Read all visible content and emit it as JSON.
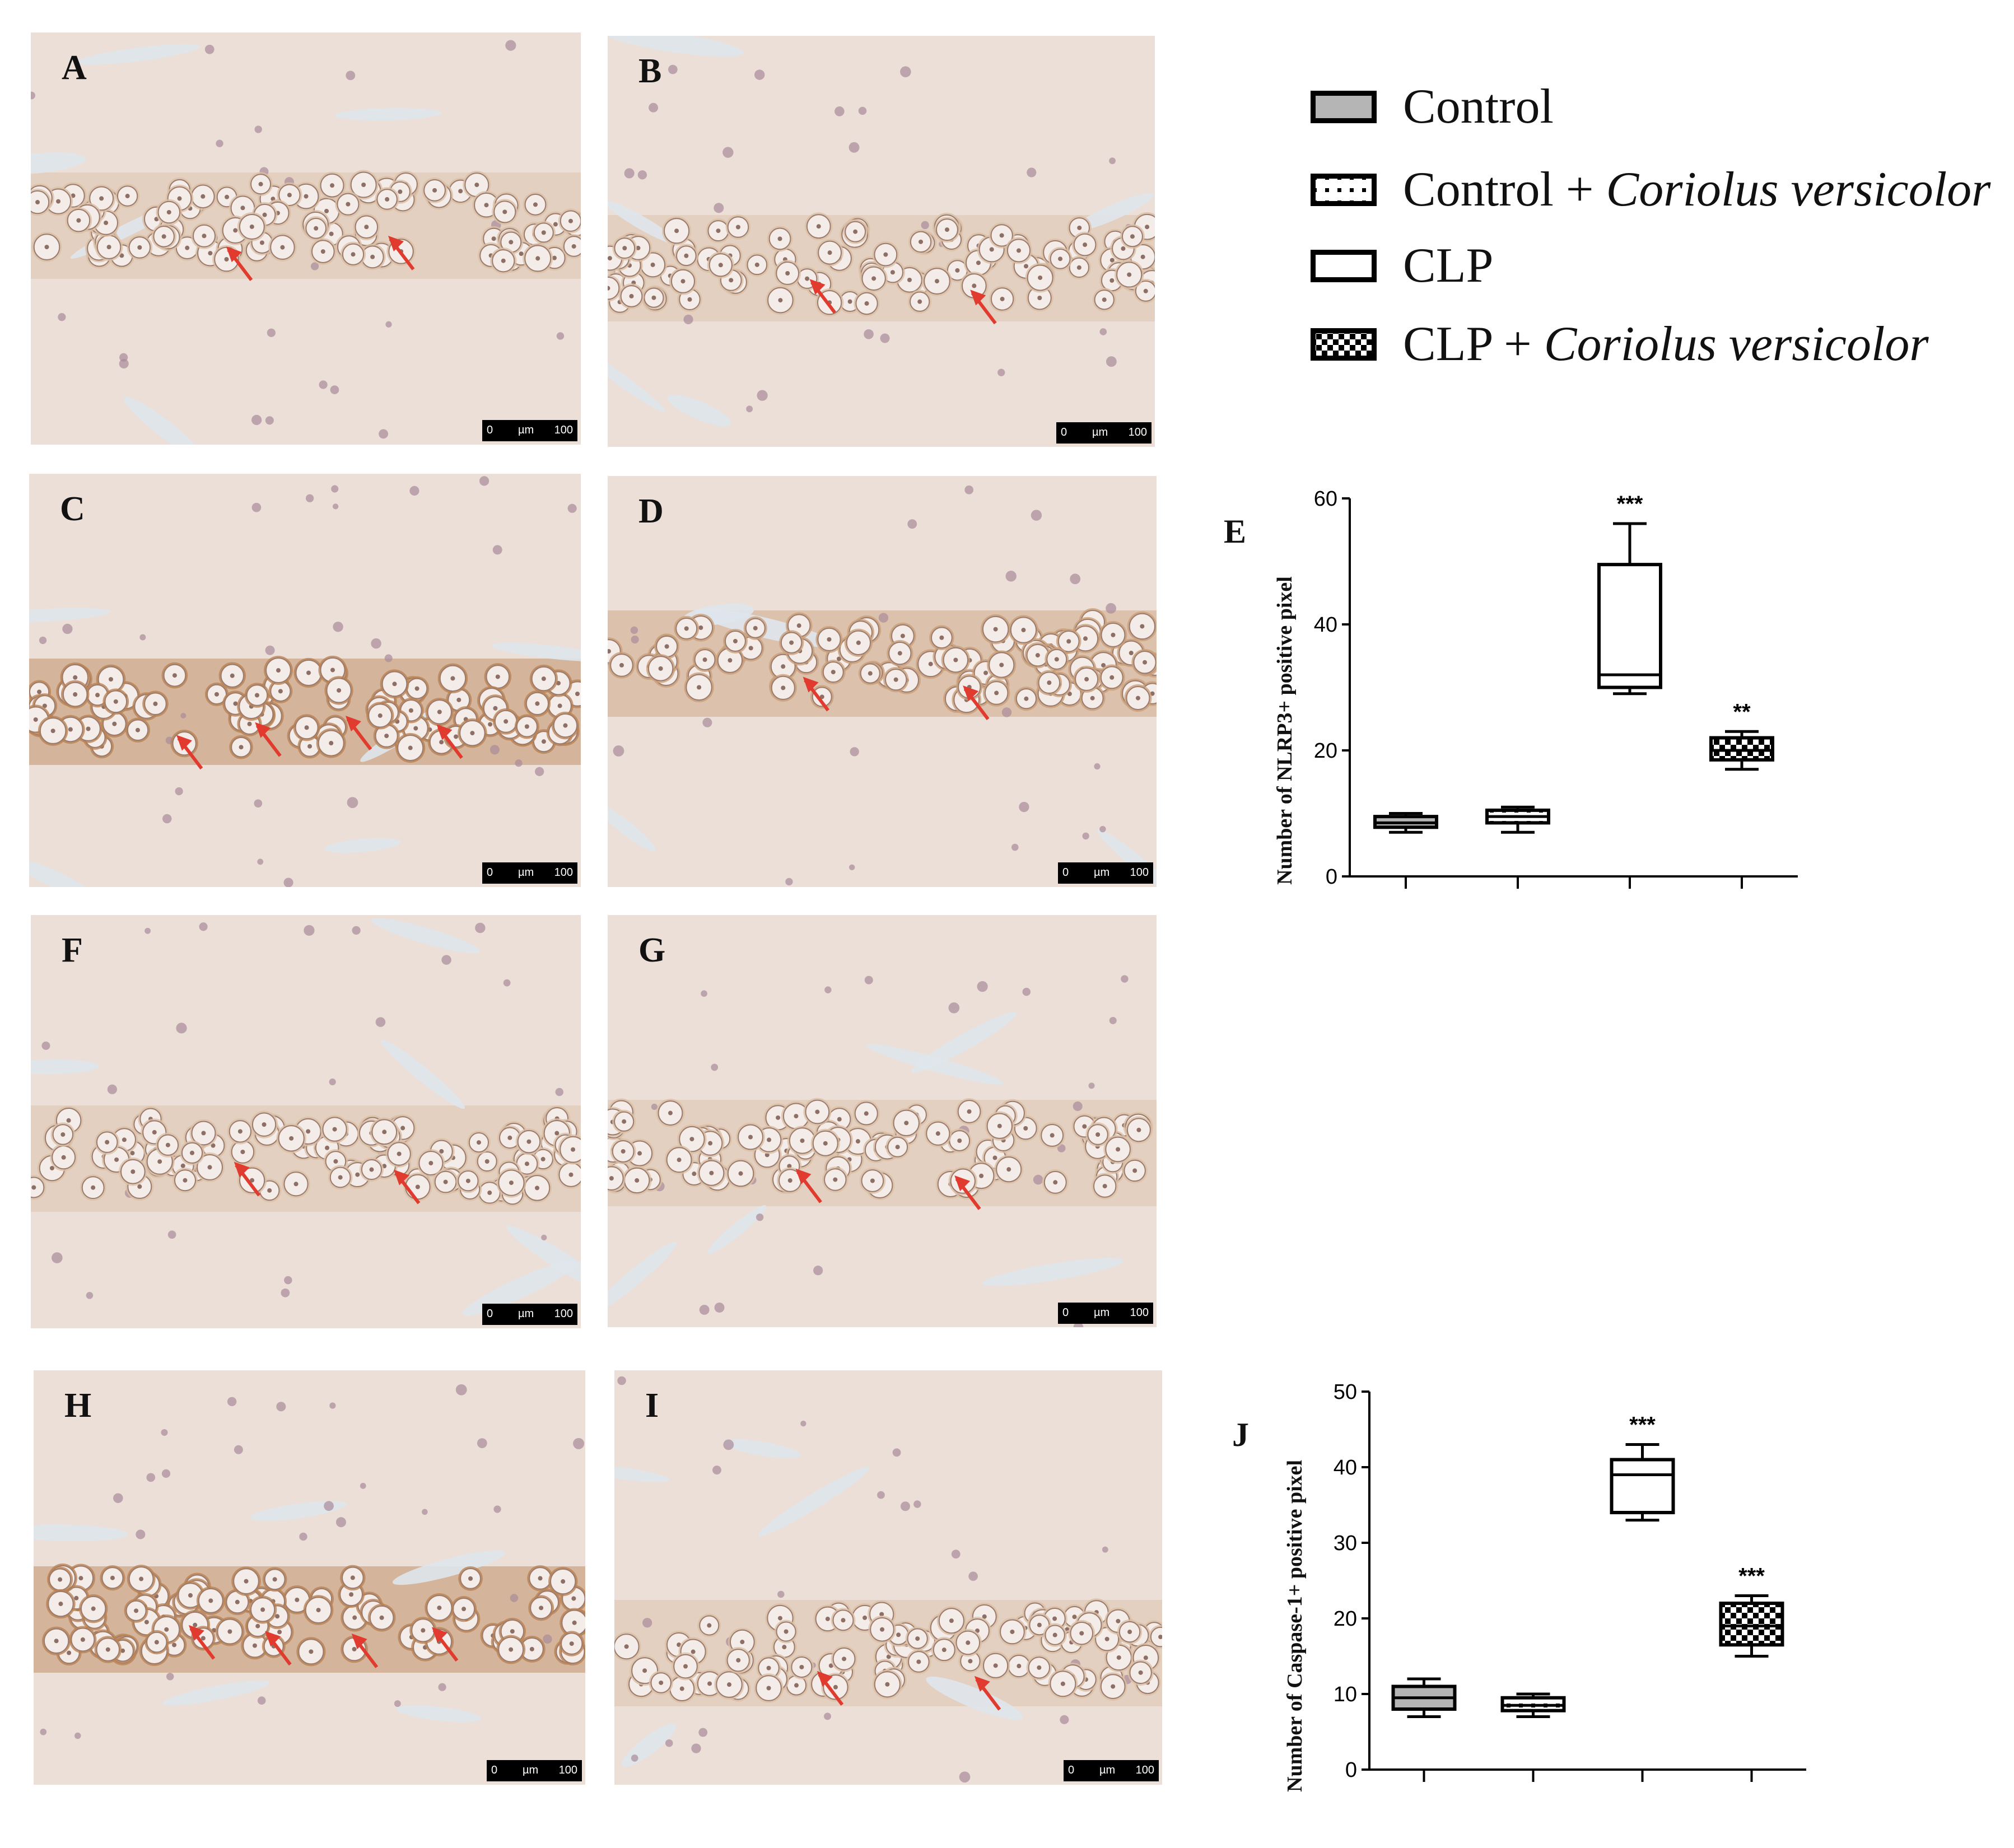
{
  "panels": [
    {
      "letter": "A"
    },
    {
      "letter": "B"
    },
    {
      "letter": "C"
    },
    {
      "letter": "D"
    },
    {
      "letter": "F"
    },
    {
      "letter": "G"
    },
    {
      "letter": "H"
    },
    {
      "letter": "I"
    }
  ],
  "scalebar": {
    "zero": "0",
    "unit": "µm",
    "length": "100"
  },
  "legend": {
    "items": [
      {
        "label": "Control",
        "label_italic": "",
        "pattern": "gray"
      },
      {
        "label": "Control + ",
        "label_italic": "Coriolus versicolor",
        "pattern": "dots"
      },
      {
        "label": "CLP",
        "label_italic": "",
        "pattern": "white"
      },
      {
        "label": "CLP + ",
        "label_italic": "Coriolus versicolor",
        "pattern": "checker"
      }
    ]
  },
  "chart_data": [
    {
      "type": "box",
      "panel_letter": "E",
      "title": "",
      "xlabel": "",
      "ylabel": "Number of NLRP3+ positive pixel",
      "ylim": [
        0,
        60
      ],
      "yticks": [
        0,
        20,
        40,
        60
      ],
      "categories": [
        "Control",
        "Control + Coriolus versicolor",
        "CLP",
        "CLP + Coriolus versicolor"
      ],
      "boxes": [
        {
          "min": 7,
          "q1": 7.8,
          "median": 8.5,
          "q3": 9.5,
          "max": 10,
          "significance": ""
        },
        {
          "min": 7,
          "q1": 8.5,
          "median": 9.5,
          "q3": 10.5,
          "max": 11,
          "significance": ""
        },
        {
          "min": 29,
          "q1": 30,
          "median": 32,
          "q3": 49.5,
          "max": 56,
          "significance": "***"
        },
        {
          "min": 17,
          "q1": 18.5,
          "median": 20,
          "q3": 22,
          "max": 23,
          "significance": "**"
        }
      ]
    },
    {
      "type": "box",
      "panel_letter": "J",
      "title": "",
      "xlabel": "",
      "ylabel": "Number of Caspase-1+ positive pixel",
      "ylim": [
        0,
        50
      ],
      "yticks": [
        0,
        10,
        20,
        30,
        40,
        50
      ],
      "categories": [
        "Control",
        "Control + Coriolus versicolor",
        "CLP",
        "CLP + Coriolus versicolor"
      ],
      "boxes": [
        {
          "min": 7,
          "q1": 8,
          "median": 9.5,
          "q3": 11,
          "max": 12,
          "significance": ""
        },
        {
          "min": 7,
          "q1": 7.8,
          "median": 8.5,
          "q3": 9.5,
          "max": 10,
          "significance": ""
        },
        {
          "min": 33,
          "q1": 34,
          "median": 39,
          "q3": 41,
          "max": 43,
          "significance": "***"
        },
        {
          "min": 15,
          "q1": 16.5,
          "median": 19,
          "q3": 22,
          "max": 23,
          "significance": "***"
        }
      ]
    }
  ],
  "colors": {
    "gray_fill": "#b5b5b5",
    "axis": "#000000",
    "tissue_bg": "#ebdcd3",
    "arrow": "#e03b2e"
  }
}
